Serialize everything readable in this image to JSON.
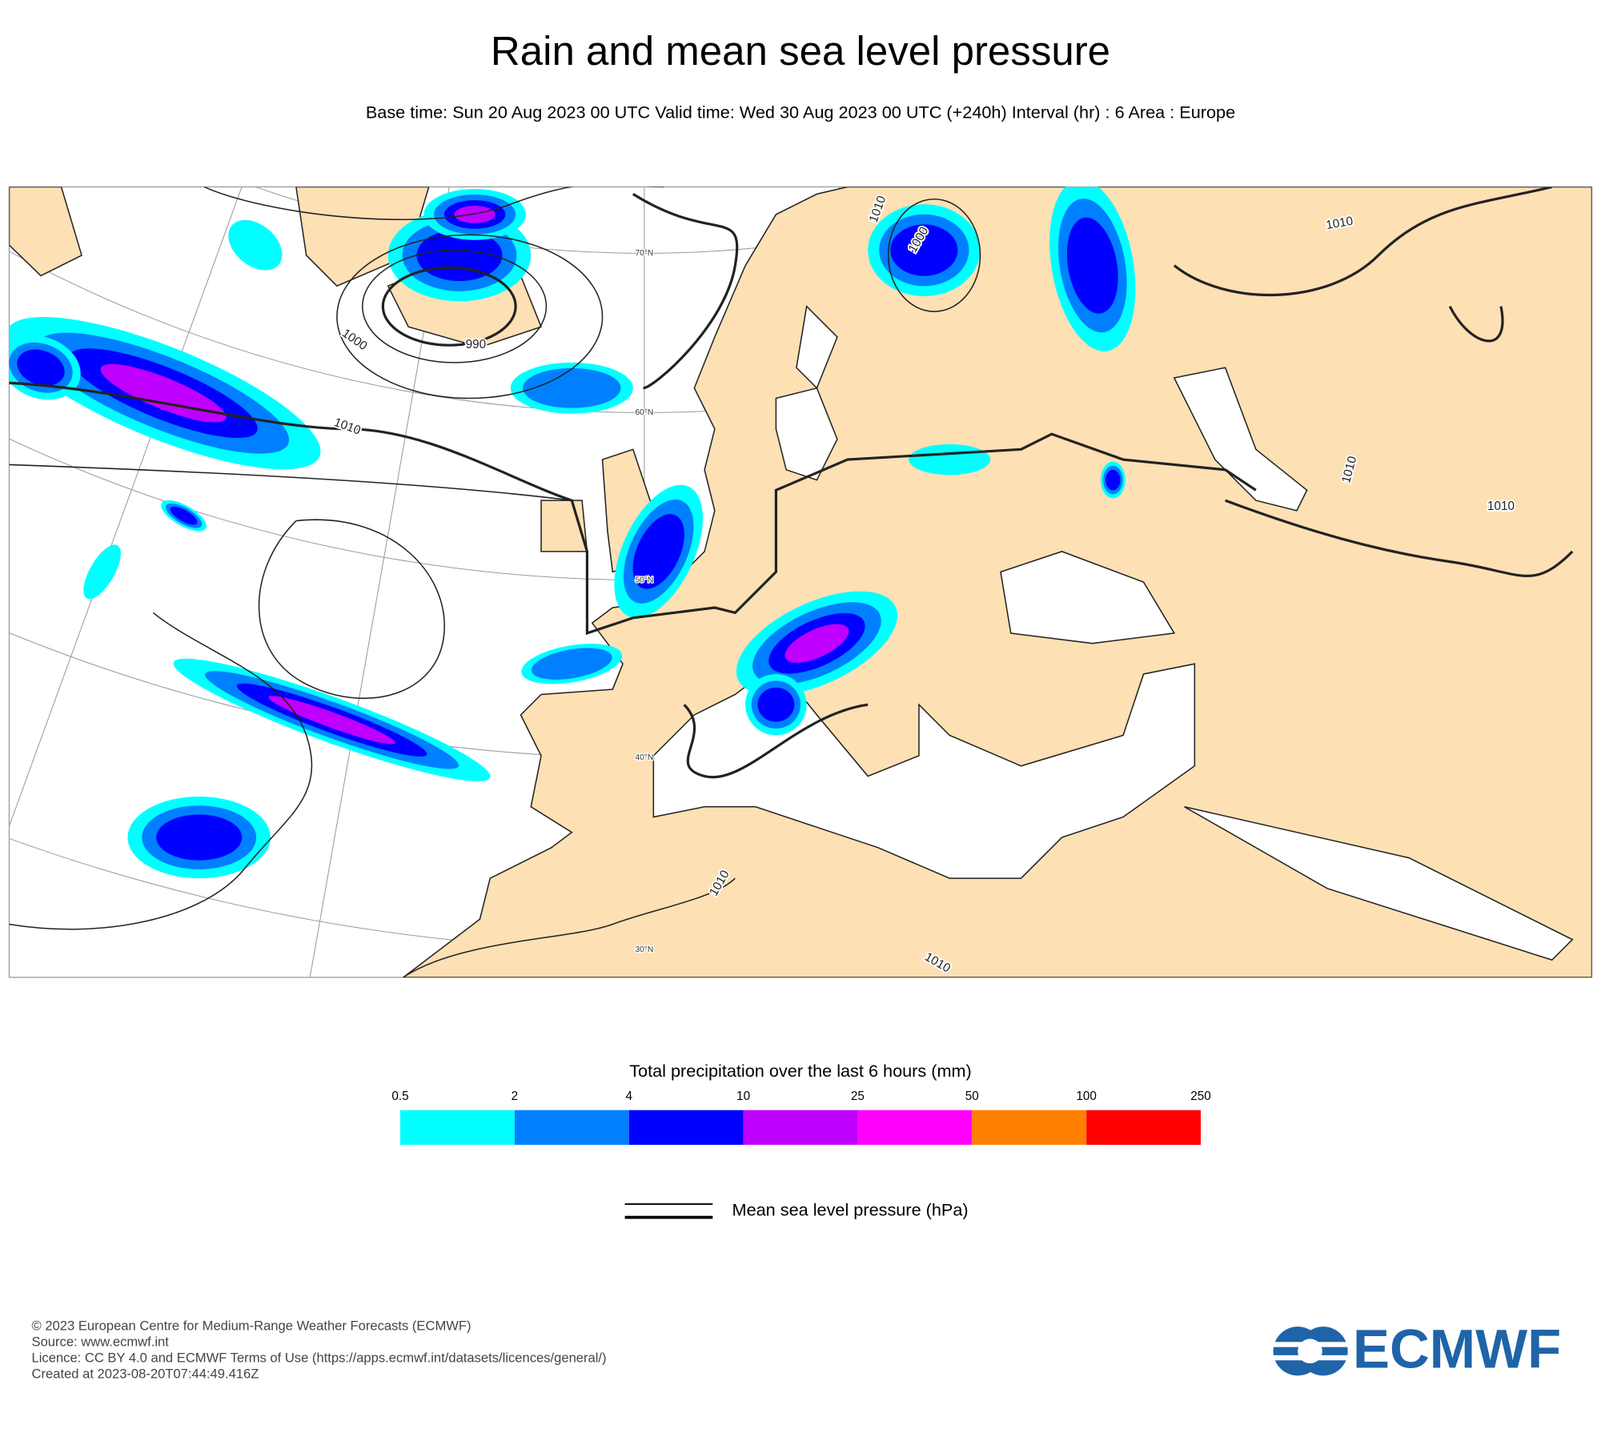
{
  "header": {
    "title": "Rain and mean sea level pressure",
    "subtitle": "Base time: Sun 20 Aug 2023 00 UTC Valid time: Wed 30 Aug 2023 00 UTC (+240h) Interval (hr) : 6 Area : Europe"
  },
  "map": {
    "isobar_labels": [
      1010,
      1000,
      990,
      1000,
      1010,
      1010,
      1010,
      1010,
      1010,
      1010
    ],
    "latitude_labels": [
      "70°N",
      "60°N",
      "50°N",
      "40°N",
      "30°N"
    ]
  },
  "legend": {
    "title": "Total precipitation over the last 6 hours (mm)",
    "bins": [
      0.5,
      2,
      4,
      10,
      25,
      50,
      100,
      250
    ],
    "colors": [
      "#00ffff",
      "#0080ff",
      "#0000ff",
      "#c000ff",
      "#ff00ff",
      "#ff8000",
      "#ff0000"
    ],
    "line_label": "Mean sea level pressure (hPa)"
  },
  "footer": {
    "lines": [
      "© 2023 European Centre for Medium-Range Weather Forecasts (ECMWF)",
      "Source: www.ecmwf.int",
      "Licence: CC BY 4.0 and ECMWF Terms of Use (https://apps.ecmwf.int/datasets/licences/general/)",
      "Created at 2023-08-20T07:44:49.416Z"
    ],
    "logo": "ECMWF"
  }
}
